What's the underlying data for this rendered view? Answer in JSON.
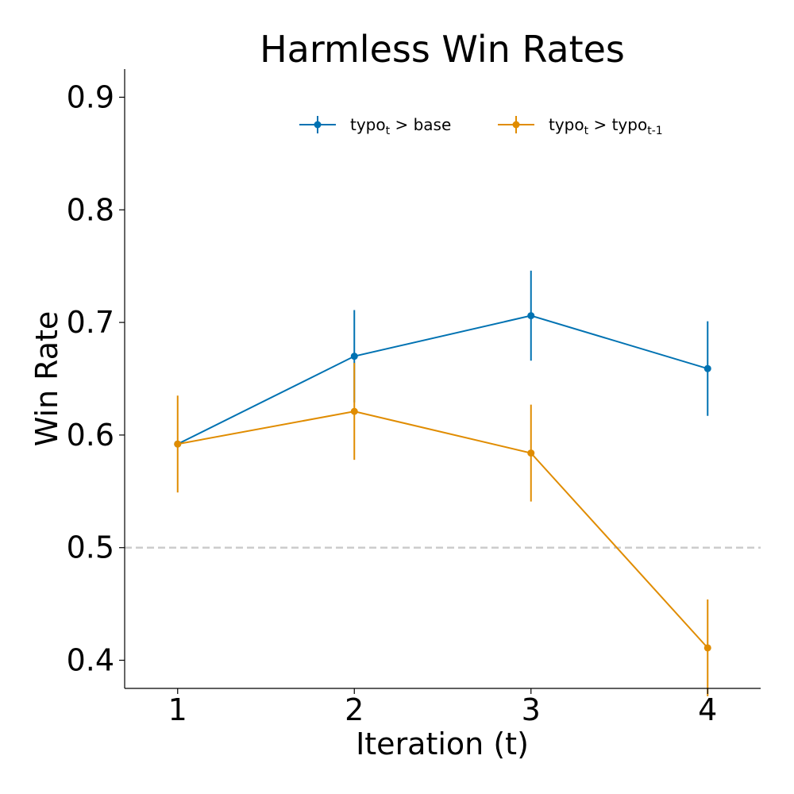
{
  "chart_data": {
    "type": "line",
    "title": "Harmless Win Rates",
    "xlabel": "Iteration (t)",
    "ylabel": "Win Rate",
    "x": [
      1,
      2,
      3,
      4
    ],
    "x_ticks": [
      "1",
      "2",
      "3",
      "4"
    ],
    "y_ticks": [
      "0.4",
      "0.5",
      "0.6",
      "0.7",
      "0.8",
      "0.9"
    ],
    "xlim": [
      0.7,
      4.3
    ],
    "ylim": [
      0.375,
      0.925
    ],
    "reference_line": {
      "y": 0.5,
      "style": "dashed",
      "color": "#cccccc"
    },
    "grid": false,
    "legend_position": "top-center",
    "series": [
      {
        "legend_parts": [
          "typo",
          "t",
          " > base",
          "",
          ""
        ],
        "color": "#0072b2",
        "values": [
          0.592,
          0.67,
          0.706,
          0.659
        ],
        "errors": [
          0.0,
          0.041,
          0.04,
          0.042
        ]
      },
      {
        "legend_parts": [
          "typo",
          "t",
          " > typo",
          "t-1",
          ""
        ],
        "color": "#e08c00",
        "values": [
          0.592,
          0.621,
          0.584,
          0.411
        ],
        "errors": [
          0.043,
          0.043,
          0.043,
          0.043
        ]
      }
    ]
  }
}
